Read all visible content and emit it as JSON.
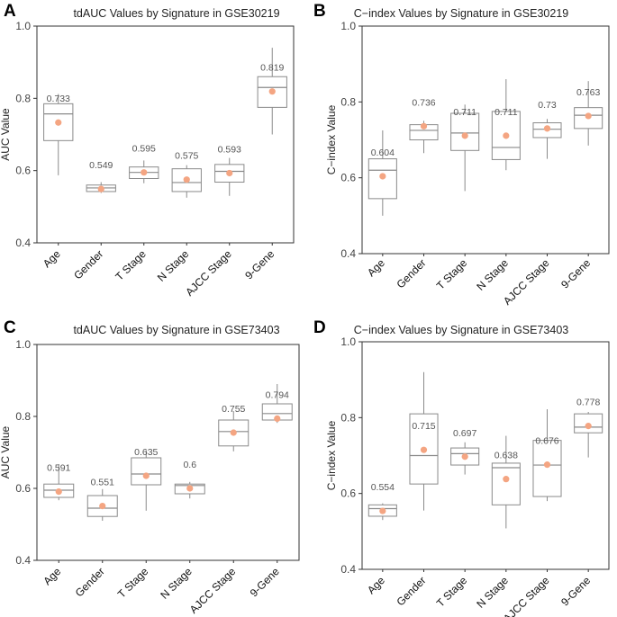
{
  "chart_data": [
    {
      "panel": "A",
      "type": "box",
      "title": "tdAUC Values by Signature in GSE30219",
      "ylabel": "AUC Value",
      "ylim": [
        0.4,
        1.0
      ],
      "yticks": [
        "0.4",
        "0.6",
        "0.8",
        "1.0"
      ],
      "categories": [
        "Age",
        "Gender",
        "T Stage",
        "N Stage",
        "AJCC Stage",
        "9-Gene"
      ],
      "boxes": [
        {
          "min": 0.587,
          "q1": 0.683,
          "median": 0.757,
          "q3": 0.785,
          "max": 0.812,
          "mean": 0.733
        },
        {
          "min": 0.538,
          "q1": 0.542,
          "median": 0.552,
          "q3": 0.56,
          "max": 0.568,
          "mean": 0.549
        },
        {
          "min": 0.565,
          "q1": 0.578,
          "median": 0.595,
          "q3": 0.61,
          "max": 0.628,
          "mean": 0.595
        },
        {
          "min": 0.525,
          "q1": 0.542,
          "median": 0.567,
          "q3": 0.605,
          "max": 0.615,
          "mean": 0.575
        },
        {
          "min": 0.53,
          "q1": 0.568,
          "median": 0.598,
          "q3": 0.617,
          "max": 0.635,
          "mean": 0.593
        },
        {
          "min": 0.7,
          "q1": 0.775,
          "median": 0.83,
          "q3": 0.86,
          "max": 0.94,
          "mean": 0.819
        }
      ],
      "labels": [
        "0.733",
        "0.549",
        "0.595",
        "0.575",
        "0.593",
        "0.819"
      ]
    },
    {
      "panel": "B",
      "type": "box",
      "title": "C−index Values by Signature in GSE30219",
      "ylabel": "C−index Value",
      "ylim": [
        0.4,
        1.0
      ],
      "yticks": [
        "0.4",
        "0.6",
        "0.8",
        "1.0"
      ],
      "categories": [
        "Age",
        "Gender",
        "T Stage",
        "N Stage",
        "AJCC Stage",
        "9-Gene"
      ],
      "boxes": [
        {
          "min": 0.5,
          "q1": 0.545,
          "median": 0.62,
          "q3": 0.65,
          "max": 0.725,
          "mean": 0.604
        },
        {
          "min": 0.665,
          "q1": 0.7,
          "median": 0.725,
          "q3": 0.74,
          "max": 0.75,
          "mean": 0.736
        },
        {
          "min": 0.565,
          "q1": 0.672,
          "median": 0.718,
          "q3": 0.77,
          "max": 0.793,
          "mean": 0.711
        },
        {
          "min": 0.62,
          "q1": 0.648,
          "median": 0.68,
          "q3": 0.775,
          "max": 0.86,
          "mean": 0.711
        },
        {
          "min": 0.65,
          "q1": 0.706,
          "median": 0.728,
          "q3": 0.745,
          "max": 0.755,
          "mean": 0.73
        },
        {
          "min": 0.685,
          "q1": 0.73,
          "median": 0.765,
          "q3": 0.785,
          "max": 0.855,
          "mean": 0.763
        }
      ],
      "labels": [
        "0.604",
        "0.736",
        "0.711",
        "0.711",
        "0.73",
        "0.763"
      ]
    },
    {
      "panel": "C",
      "type": "box",
      "title": "tdAUC Values by Signature in GSE73403",
      "ylabel": "AUC Value",
      "ylim": [
        0.4,
        1.0
      ],
      "yticks": [
        "0.4",
        "0.6",
        "0.8",
        "1.0"
      ],
      "categories": [
        "Age",
        "Gender",
        "T Stage",
        "N Stage",
        "AJCC Stage",
        "9-Gene"
      ],
      "boxes": [
        {
          "min": 0.567,
          "q1": 0.575,
          "median": 0.595,
          "q3": 0.612,
          "max": 0.667,
          "mean": 0.591
        },
        {
          "min": 0.51,
          "q1": 0.522,
          "median": 0.545,
          "q3": 0.58,
          "max": 0.598,
          "mean": 0.551
        },
        {
          "min": 0.538,
          "q1": 0.61,
          "median": 0.64,
          "q3": 0.685,
          "max": 0.705,
          "mean": 0.635
        },
        {
          "min": 0.572,
          "q1": 0.585,
          "median": 0.608,
          "q3": 0.612,
          "max": 0.618,
          "mean": 0.6
        },
        {
          "min": 0.703,
          "q1": 0.718,
          "median": 0.758,
          "q3": 0.79,
          "max": 0.815,
          "mean": 0.755
        },
        {
          "min": 0.782,
          "q1": 0.79,
          "median": 0.808,
          "q3": 0.835,
          "max": 0.89,
          "mean": 0.794
        }
      ],
      "labels": [
        "0.591",
        "0.551",
        "0.635",
        "0.6",
        "0.755",
        "0.794"
      ]
    },
    {
      "panel": "D",
      "type": "box",
      "title": "C−index Values by Signature in GSE73403",
      "ylabel": "C−index Value",
      "ylim": [
        0.4,
        1.0
      ],
      "yticks": [
        "0.4",
        "0.6",
        "0.8",
        "1.0"
      ],
      "categories": [
        "Age",
        "Gender",
        "T Stage",
        "N Stage",
        "AJCC Stage",
        "9-Gene"
      ],
      "boxes": [
        {
          "min": 0.53,
          "q1": 0.54,
          "median": 0.56,
          "q3": 0.57,
          "max": 0.574,
          "mean": 0.554
        },
        {
          "min": 0.555,
          "q1": 0.625,
          "median": 0.7,
          "q3": 0.81,
          "max": 0.92,
          "mean": 0.715
        },
        {
          "min": 0.65,
          "q1": 0.675,
          "median": 0.705,
          "q3": 0.72,
          "max": 0.735,
          "mean": 0.697
        },
        {
          "min": 0.508,
          "q1": 0.57,
          "median": 0.668,
          "q3": 0.68,
          "max": 0.752,
          "mean": 0.638
        },
        {
          "min": 0.58,
          "q1": 0.592,
          "median": 0.675,
          "q3": 0.74,
          "max": 0.822,
          "mean": 0.676
        },
        {
          "min": 0.695,
          "q1": 0.76,
          "median": 0.775,
          "q3": 0.81,
          "max": 0.815,
          "mean": 0.778
        }
      ],
      "labels": [
        "0.554",
        "0.715",
        "0.697",
        "0.638",
        "0.676",
        "0.778"
      ]
    }
  ]
}
